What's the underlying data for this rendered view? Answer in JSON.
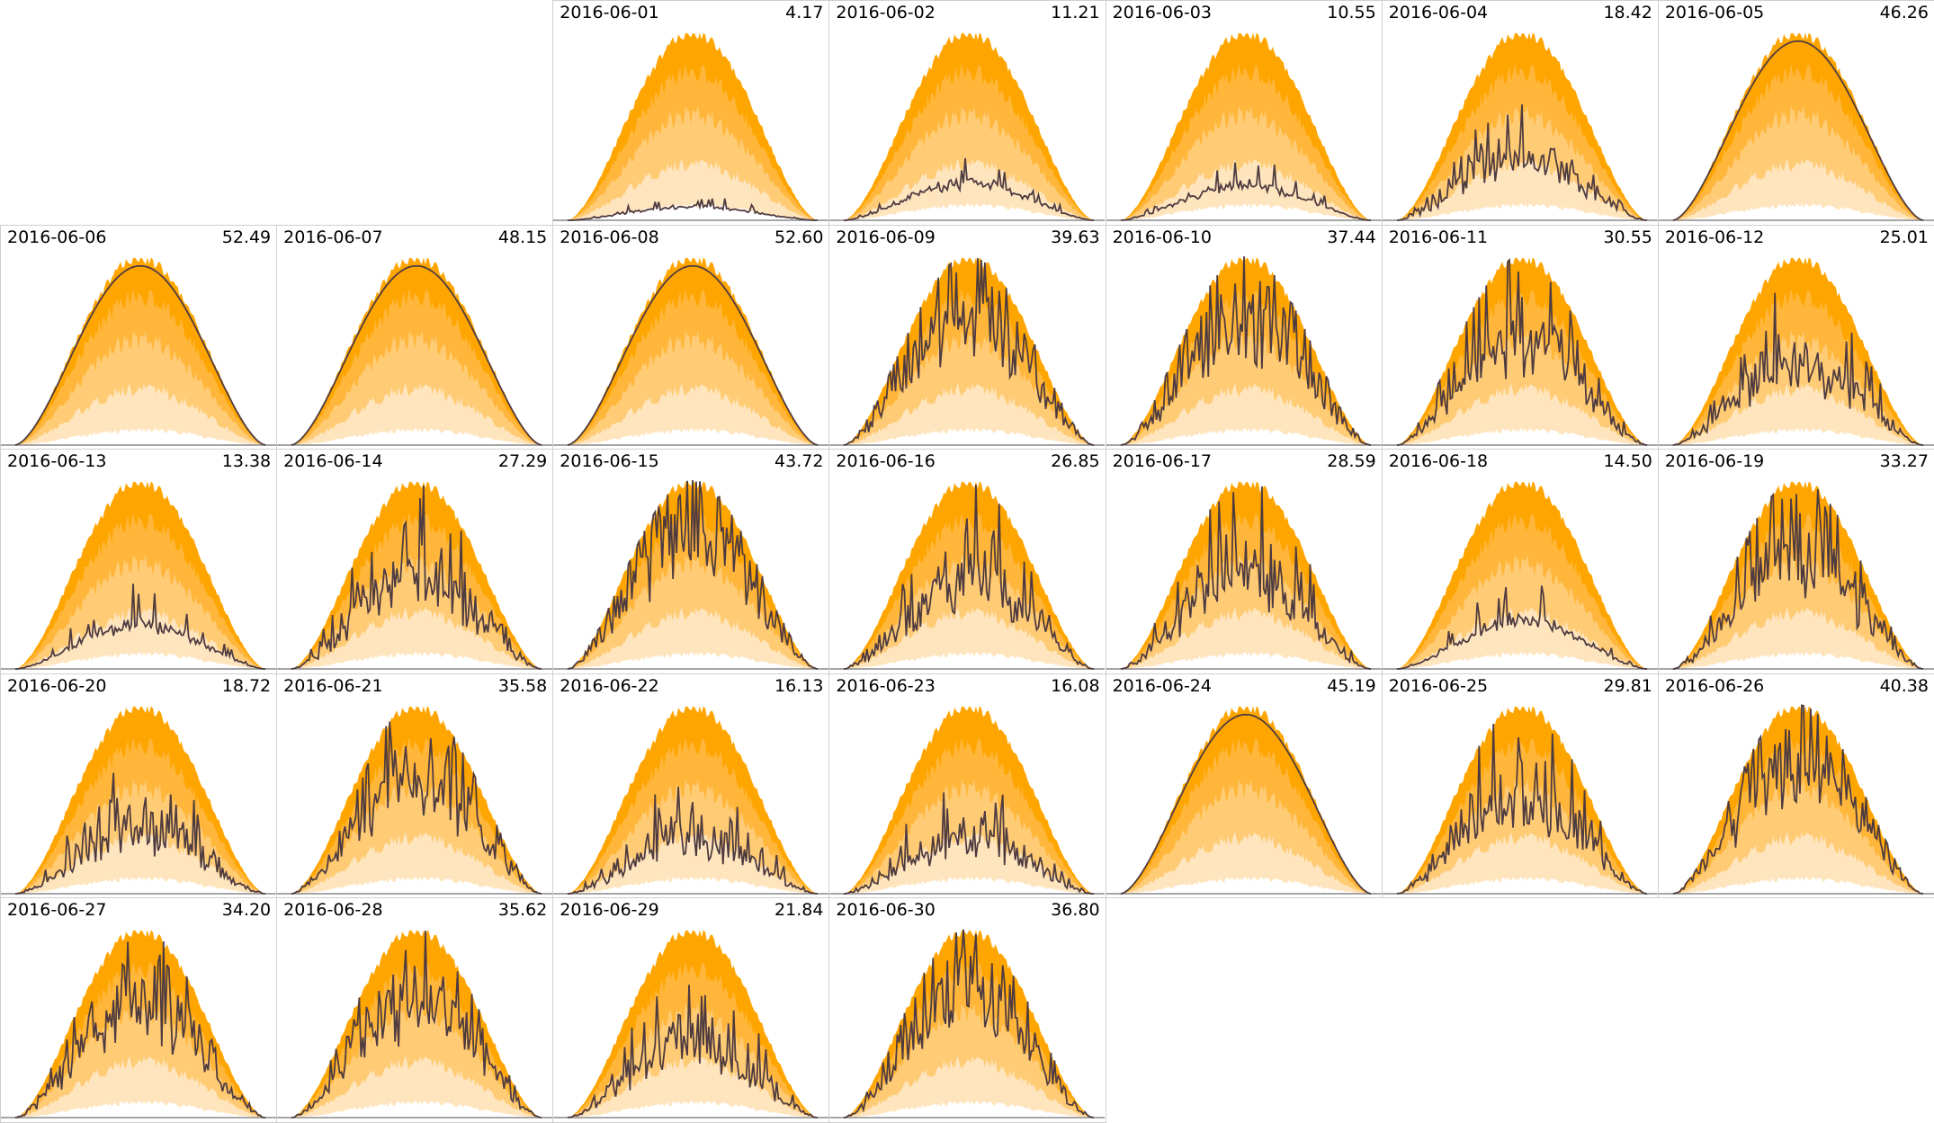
{
  "chart_data": {
    "type": "area",
    "title": "",
    "layout": "calendar small multiples, 7 columns, week rows",
    "first_day_column": 2,
    "band_colors": [
      "#ffa500",
      "#ffb63a",
      "#ffcb75",
      "#ffe5be"
    ],
    "line_color": "#4e3b40",
    "days": [
      {
        "date": "2016-06-01",
        "value": "4.17"
      },
      {
        "date": "2016-06-02",
        "value": "11.21"
      },
      {
        "date": "2016-06-03",
        "value": "10.55"
      },
      {
        "date": "2016-06-04",
        "value": "18.42"
      },
      {
        "date": "2016-06-05",
        "value": "46.26"
      },
      {
        "date": "2016-06-06",
        "value": "52.49"
      },
      {
        "date": "2016-06-07",
        "value": "48.15"
      },
      {
        "date": "2016-06-08",
        "value": "52.60"
      },
      {
        "date": "2016-06-09",
        "value": "39.63"
      },
      {
        "date": "2016-06-10",
        "value": "37.44"
      },
      {
        "date": "2016-06-11",
        "value": "30.55"
      },
      {
        "date": "2016-06-12",
        "value": "25.01"
      },
      {
        "date": "2016-06-13",
        "value": "13.38"
      },
      {
        "date": "2016-06-14",
        "value": "27.29"
      },
      {
        "date": "2016-06-15",
        "value": "43.72"
      },
      {
        "date": "2016-06-16",
        "value": "26.85"
      },
      {
        "date": "2016-06-17",
        "value": "28.59"
      },
      {
        "date": "2016-06-18",
        "value": "14.50"
      },
      {
        "date": "2016-06-19",
        "value": "33.27"
      },
      {
        "date": "2016-06-20",
        "value": "18.72"
      },
      {
        "date": "2016-06-21",
        "value": "35.58"
      },
      {
        "date": "2016-06-22",
        "value": "16.13"
      },
      {
        "date": "2016-06-23",
        "value": "16.08"
      },
      {
        "date": "2016-06-24",
        "value": "45.19"
      },
      {
        "date": "2016-06-25",
        "value": "29.81"
      },
      {
        "date": "2016-06-26",
        "value": "40.38"
      },
      {
        "date": "2016-06-27",
        "value": "34.20"
      },
      {
        "date": "2016-06-28",
        "value": "35.62"
      },
      {
        "date": "2016-06-29",
        "value": "21.84"
      },
      {
        "date": "2016-06-30",
        "value": "36.80"
      }
    ]
  }
}
